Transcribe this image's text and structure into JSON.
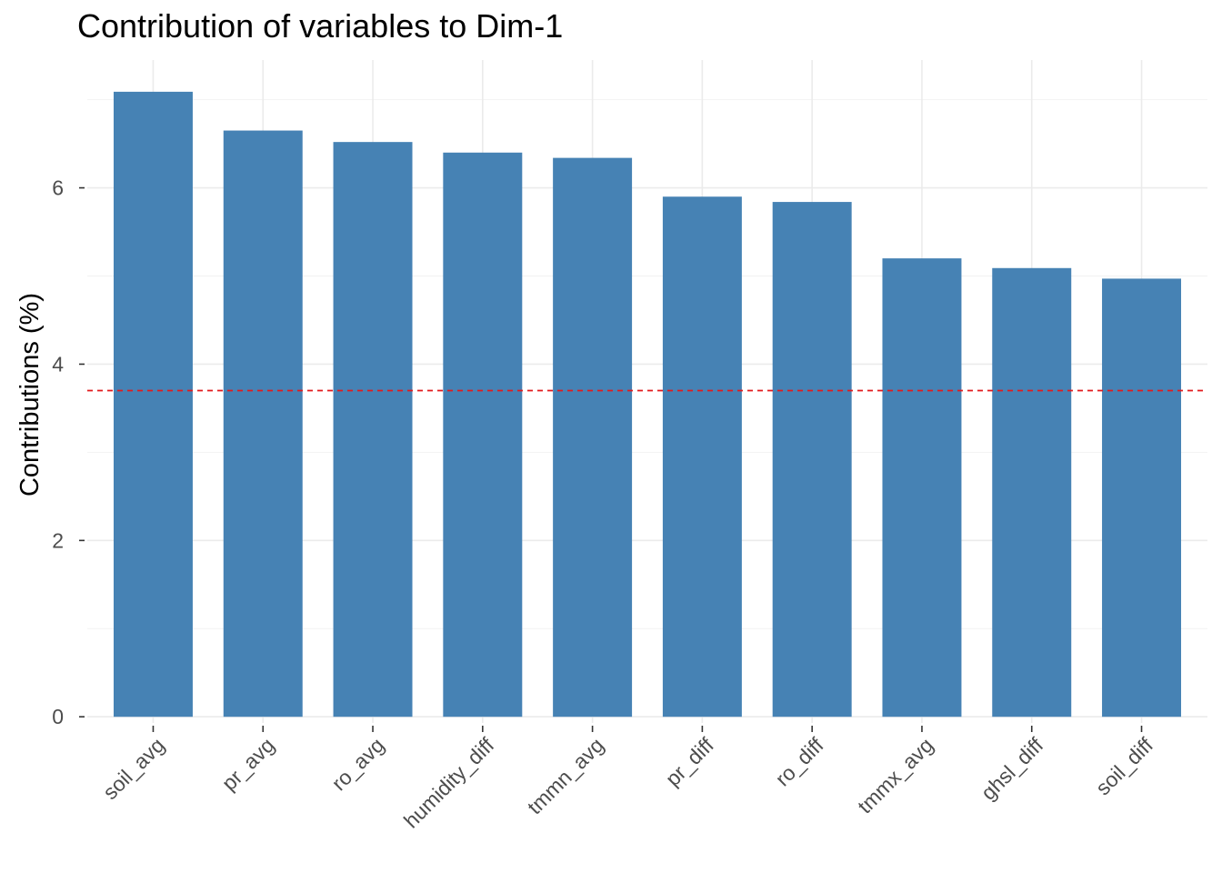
{
  "chart_data": {
    "type": "bar",
    "title": "Contribution of variables to Dim-1",
    "xlabel": "",
    "ylabel": "Contributions (%)",
    "categories": [
      "soil_avg",
      "pr_avg",
      "ro_avg",
      "humidity_diff",
      "tmmn_avg",
      "pr_diff",
      "ro_diff",
      "tmmx_avg",
      "ghsl_diff",
      "soil_diff"
    ],
    "values": [
      7.09,
      6.65,
      6.52,
      6.4,
      6.34,
      5.9,
      5.84,
      5.2,
      5.09,
      4.97
    ],
    "reference_line": 3.7,
    "ylim": [
      -0.07,
      7.45
    ],
    "yticks": [
      0,
      2,
      4,
      6
    ],
    "grid": true,
    "legend": "none",
    "colors": {
      "bar": "#4682b4",
      "reference_line": "#e31a1c",
      "grid": "#ebebeb",
      "tick": "#333333"
    }
  }
}
